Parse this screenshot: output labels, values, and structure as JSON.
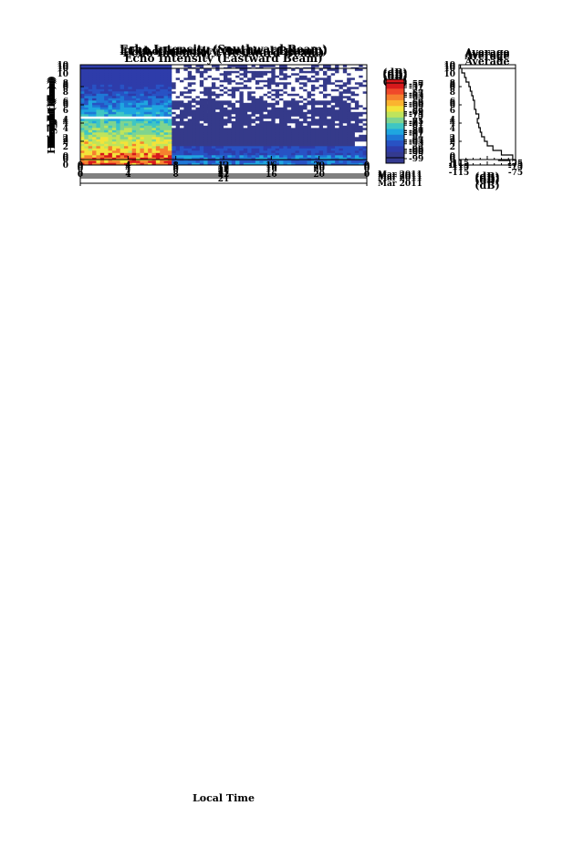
{
  "figure": {
    "x_axis_label": "Local Time",
    "date_label": "Mar 2011",
    "day_label": "21"
  },
  "chart_data": [
    {
      "type": "heatmap",
      "title": "Echo Intensity (Vertical Beam)",
      "ylabel": "Height (km)",
      "xlabel": "Local Time",
      "x_ticks": [
        "0",
        "4",
        "8",
        "12",
        "16",
        "20",
        "0"
      ],
      "y_ticks": [
        "0",
        "2",
        "4",
        "6",
        "8",
        "10"
      ],
      "xlim": [
        0,
        24
      ],
      "ylim": [
        0,
        10
      ],
      "colorbar": {
        "unit": "(dB)",
        "ticks": [
          "-57",
          "-63",
          "-69",
          "-75",
          "-81",
          "-87",
          "-93",
          "-99"
        ]
      },
      "average_profile": {
        "title": "Average",
        "xlabel": "(dB)",
        "x_ticks": [
          "-115",
          "-75"
        ],
        "xlim": [
          -115,
          -75
        ],
        "y_ticks": [
          "0",
          "2",
          "4",
          "6",
          "8",
          "10"
        ],
        "heights": [
          0,
          0.5,
          1,
          1.5,
          2,
          2.5,
          3,
          3.5,
          4,
          4.5,
          5,
          5.5,
          6,
          6.5,
          7,
          7.5,
          8,
          8.5,
          9,
          9.5
        ],
        "values": [
          -77,
          -84,
          -90,
          -95,
          -97,
          -99,
          -100,
          -101,
          -102,
          -101,
          -104,
          -104,
          -103,
          -105,
          -106,
          -106,
          -108,
          -109,
          -111,
          -112
        ]
      }
    },
    {
      "type": "heatmap",
      "title": "Echo Intensity (Northward Beam)",
      "ylabel": "Height (km)",
      "xlabel": "Local Time",
      "x_ticks": [
        "0",
        "4",
        "8",
        "12",
        "16",
        "20",
        "0"
      ],
      "y_ticks": [
        "0",
        "2",
        "4",
        "6",
        "8",
        "10"
      ],
      "xlim": [
        0,
        24
      ],
      "ylim": [
        0,
        10
      ],
      "colorbar": {
        "unit": "(dB)",
        "ticks": [
          "-57",
          "-63",
          "-69",
          "-75",
          "-81",
          "-87",
          "-93",
          "-99"
        ]
      },
      "average_profile": {
        "title": "Average",
        "xlabel": "(dB)",
        "x_ticks": [
          "-115",
          "-75"
        ],
        "xlim": [
          -115,
          -75
        ],
        "y_ticks": [
          "0",
          "2",
          "4",
          "6",
          "8",
          "10"
        ],
        "heights": [
          0,
          0.5,
          1,
          1.5,
          2,
          2.5,
          3,
          3.5,
          4,
          4.5,
          5,
          5.5,
          6,
          6.5,
          7,
          7.5,
          8,
          8.5,
          9,
          9.5
        ],
        "values": [
          -78,
          -86,
          -92,
          -96,
          -98,
          -100,
          -101,
          -102,
          -102,
          -103,
          -104,
          -105,
          -104,
          -106,
          -107,
          -107,
          -109,
          -110,
          -112,
          -113
        ]
      }
    },
    {
      "type": "heatmap",
      "title": "Echo Intensity (Eastward Beam)",
      "ylabel": "Height (km)",
      "xlabel": "Local Time",
      "x_ticks": [
        "0",
        "4",
        "8",
        "12",
        "16",
        "20",
        "0"
      ],
      "y_ticks": [
        "0",
        "2",
        "4",
        "6",
        "8",
        "10"
      ],
      "xlim": [
        0,
        24
      ],
      "ylim": [
        0,
        10
      ],
      "colorbar": {
        "unit": "(dB)",
        "ticks": [
          "-57",
          "-63",
          "-69",
          "-75",
          "-81",
          "-87",
          "-93",
          "-99"
        ]
      },
      "average_profile": {
        "title": "Average",
        "xlabel": "(dB)",
        "x_ticks": [
          "-115",
          "-75"
        ],
        "xlim": [
          -115,
          -75
        ],
        "y_ticks": [
          "0",
          "2",
          "4",
          "6",
          "8",
          "10"
        ],
        "heights": [
          0,
          0.5,
          1,
          1.5,
          2,
          2.5,
          3,
          3.5,
          4,
          4.5,
          5,
          5.5,
          6,
          6.5,
          7,
          7.5,
          8,
          8.5,
          9,
          9.5
        ],
        "values": [
          -79,
          -87,
          -93,
          -97,
          -99,
          -100,
          -102,
          -103,
          -104,
          -102,
          -104,
          -106,
          -105,
          -106,
          -108,
          -107,
          -109,
          -110,
          -112,
          -113
        ]
      }
    },
    {
      "type": "heatmap",
      "title": "Echo Intensity (Southward Beam)",
      "ylabel": "Height (km)",
      "xlabel": "Local Time",
      "x_ticks": [
        "0",
        "4",
        "8",
        "12",
        "16",
        "20",
        "0"
      ],
      "y_ticks": [
        "0",
        "2",
        "4",
        "6",
        "8",
        "10"
      ],
      "xlim": [
        0,
        24
      ],
      "ylim": [
        0,
        10
      ],
      "colorbar": {
        "unit": "(dB)",
        "ticks": [
          "-57",
          "-63",
          "-69",
          "-75",
          "-81",
          "-87",
          "-93",
          "-99"
        ]
      },
      "average_profile": {
        "title": "Average",
        "xlabel": "(dB)",
        "x_ticks": [
          "-115",
          "-75"
        ],
        "xlim": [
          -115,
          -75
        ],
        "y_ticks": [
          "0",
          "2",
          "4",
          "6",
          "8",
          "10"
        ],
        "heights": [
          0,
          0.5,
          1,
          1.5,
          2,
          2.5,
          3,
          3.5,
          4,
          4.5,
          5,
          5.5,
          6,
          6.5,
          7,
          7.5,
          8,
          8.5,
          9,
          9.5
        ],
        "values": [
          -78,
          -86,
          -92,
          -96,
          -98,
          -100,
          -101,
          -102,
          -103,
          -102,
          -104,
          -105,
          -104,
          -106,
          -107,
          -108,
          -109,
          -110,
          -112,
          -114
        ]
      }
    },
    {
      "type": "heatmap",
      "title": "Echo Intensity (Westward Beam)",
      "ylabel": "Height (km)",
      "xlabel": "Local Time",
      "x_ticks": [
        "0",
        "4",
        "8",
        "12",
        "16",
        "20",
        "0"
      ],
      "y_ticks": [
        "0",
        "2",
        "4",
        "6",
        "8",
        "10"
      ],
      "xlim": [
        0,
        24
      ],
      "ylim": [
        0,
        10
      ],
      "colorbar": {
        "unit": "(dB)",
        "ticks": [
          "-57",
          "-63",
          "-69",
          "-75",
          "-81",
          "-87",
          "-93",
          "-99"
        ]
      },
      "average_profile": {
        "title": "Average",
        "xlabel": "(dB)",
        "x_ticks": [
          "-115",
          "-75"
        ],
        "xlim": [
          -115,
          -75
        ],
        "y_ticks": [
          "0",
          "2",
          "4",
          "6",
          "8",
          "10"
        ],
        "heights": [
          0,
          0.5,
          1,
          1.5,
          2,
          2.5,
          3,
          3.5,
          4,
          4.5,
          5,
          5.5,
          6,
          6.5,
          7,
          7.5,
          8,
          8.5,
          9,
          9.5
        ],
        "values": [
          -77,
          -85,
          -91,
          -95,
          -97,
          -99,
          -100,
          -101,
          -102,
          -101,
          -103,
          -104,
          -104,
          -105,
          -106,
          -107,
          -108,
          -110,
          -111,
          -113
        ]
      }
    }
  ]
}
